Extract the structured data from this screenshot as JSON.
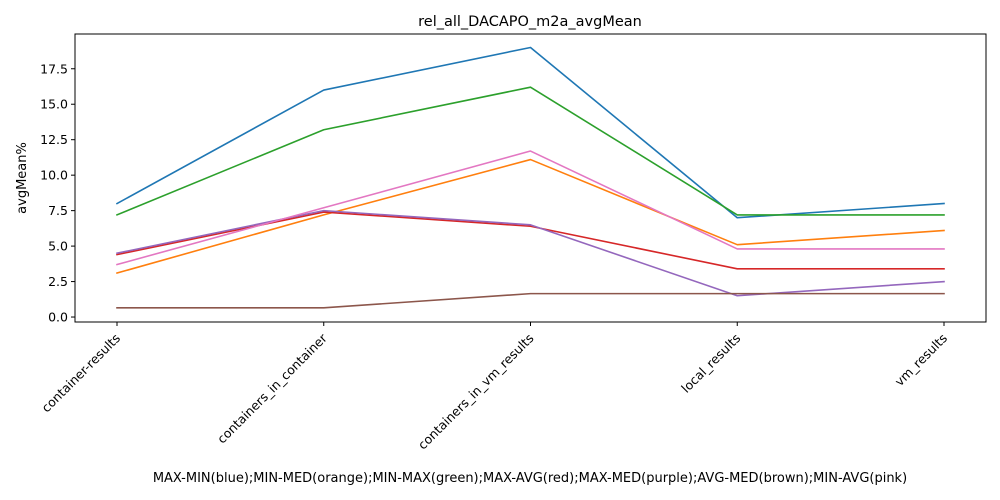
{
  "chart_data": {
    "type": "line",
    "title": "rel_all_DACAPO_m2a_avgMean",
    "xlabel": "MAX-MIN(blue);MIN-MED(orange);MIN-MAX(green);MAX-AVG(red);MAX-MED(purple);AVG-MED(brown);MIN-AVG(pink)",
    "ylabel": "avgMean%",
    "categories": [
      "container-results",
      "containers_in_container",
      "containers_in_vm_results",
      "local_results",
      "vm_results"
    ],
    "ylim": [
      -0.35,
      19.95
    ],
    "yticks": [
      0.0,
      2.5,
      5.0,
      7.5,
      10.0,
      12.5,
      15.0,
      17.5
    ],
    "ytick_labels": [
      "0.0",
      "2.5",
      "5.0",
      "7.5",
      "10.0",
      "12.5",
      "15.0",
      "17.5"
    ],
    "grid": false,
    "series": [
      {
        "color": "#1f77b4",
        "values": [
          8.0,
          16.0,
          19.0,
          7.0,
          8.0
        ]
      },
      {
        "color": "#ff7f0e",
        "values": [
          3.1,
          7.2,
          11.1,
          5.1,
          6.1
        ]
      },
      {
        "color": "#2ca02c",
        "values": [
          7.2,
          13.2,
          16.2,
          7.2,
          7.2
        ]
      },
      {
        "color": "#d62728",
        "values": [
          4.4,
          7.4,
          6.4,
          3.4,
          3.4
        ]
      },
      {
        "color": "#9467bd",
        "values": [
          4.5,
          7.5,
          6.5,
          1.5,
          2.5
        ]
      },
      {
        "color": "#8c564b",
        "values": [
          0.65,
          0.65,
          1.65,
          1.65,
          1.65
        ]
      },
      {
        "color": "#e377c2",
        "values": [
          3.7,
          7.7,
          11.7,
          4.8,
          4.8
        ]
      }
    ]
  }
}
